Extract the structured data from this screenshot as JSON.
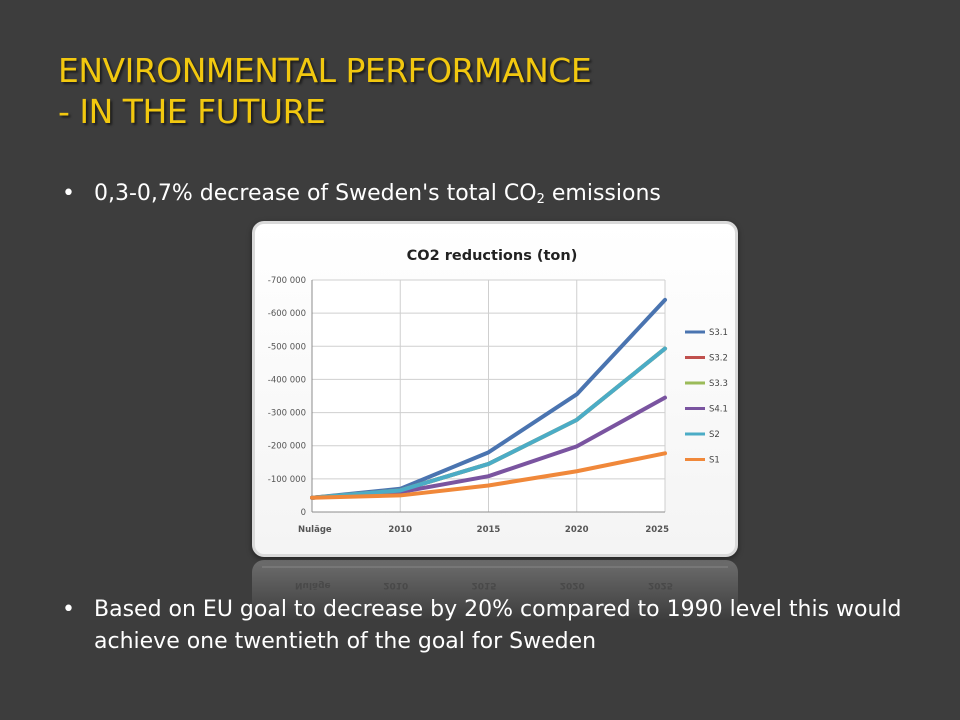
{
  "slide": {
    "title_line1": "ENVIRONMENTAL PERFORMANCE",
    "title_line2": "- IN THE FUTURE",
    "bullet1_pre": "0,3-0,7% decrease of Sweden's total CO",
    "bullet1_sub": "2",
    "bullet1_post": " emissions",
    "bullet2": "Based on EU goal to decrease by 20% compared to 1990 level this would achieve one twentieth of the goal for Sweden",
    "bullet_glyph": "•"
  },
  "colors": {
    "background": "#3d3d3d",
    "title": "#f2c80f",
    "text": "#ffffff"
  },
  "chart_data": {
    "type": "line",
    "title": "CO2 reductions (ton)",
    "xlabel": "",
    "ylabel": "",
    "categories": [
      "Nuläge",
      "2010",
      "2015",
      "2020",
      "2025"
    ],
    "yticks": [
      0,
      -100000,
      -200000,
      -300000,
      -400000,
      -500000,
      -600000,
      -700000
    ],
    "ytick_labels": [
      "0",
      "-100 000",
      "-200 000",
      "-300 000",
      "-400 000",
      "-500 000",
      "-600 000",
      "-700 000"
    ],
    "ylim": [
      0,
      -700000
    ],
    "y_reversed": true,
    "grid": true,
    "legend_position": "right",
    "series": [
      {
        "name": "S3.1",
        "color": "#4a74b0",
        "values": [
          -43000,
          -70000,
          -180000,
          -355000,
          -640000
        ]
      },
      {
        "name": "S3.2",
        "color": "#c0504d",
        "values": [
          -43000,
          -65000,
          -145000,
          -278000,
          -493000
        ]
      },
      {
        "name": "S3.3",
        "color": "#9bbb59",
        "values": [
          -43000,
          -65000,
          -145000,
          -278000,
          -493000
        ]
      },
      {
        "name": "S4.1",
        "color": "#7a54a0",
        "values": [
          -43000,
          -60000,
          -108000,
          -198000,
          -345000
        ]
      },
      {
        "name": "S2",
        "color": "#4bacc6",
        "values": [
          -43000,
          -65000,
          -145000,
          -278000,
          -493000
        ]
      },
      {
        "name": "S1",
        "color": "#f0883a",
        "values": [
          -43000,
          -50000,
          -80000,
          -123000,
          -177000
        ]
      }
    ]
  }
}
